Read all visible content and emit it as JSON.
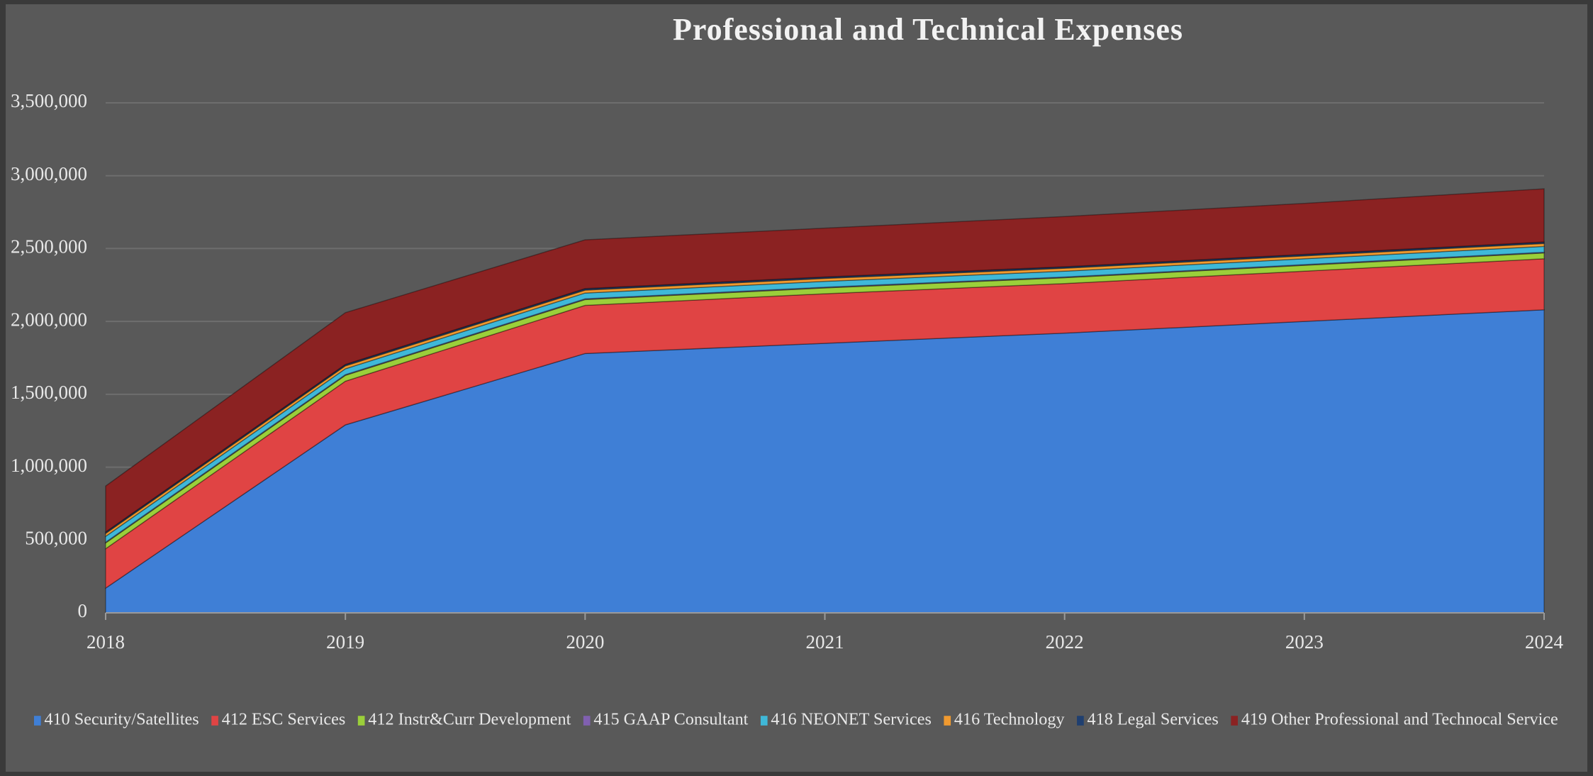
{
  "chart_data": {
    "type": "stacked_area",
    "title": "Professional and Technical Expenses",
    "categories": [
      "2018",
      "2019",
      "2020",
      "2021",
      "2022",
      "2023",
      "2024"
    ],
    "series": [
      {
        "name": "410 Security/Satellites",
        "color": "#3f7fd6",
        "values": [
          170000,
          1290000,
          1780000,
          1850000,
          1920000,
          2000000,
          2080000
        ]
      },
      {
        "name": "412 ESC Services",
        "color": "#e04444",
        "values": [
          270000,
          300000,
          330000,
          340000,
          340000,
          345000,
          350000
        ]
      },
      {
        "name": "412 Instr&Curr Development",
        "color": "#9bcf3a",
        "values": [
          40000,
          40000,
          40000,
          40000,
          40000,
          40000,
          40000
        ]
      },
      {
        "name": "415 GAAP Consultant",
        "color": "#8060b0",
        "values": [
          5000,
          5000,
          5000,
          5000,
          5000,
          5000,
          5000
        ]
      },
      {
        "name": "416 NEONET Services",
        "color": "#3fb8d8",
        "values": [
          40000,
          40000,
          40000,
          40000,
          40000,
          40000,
          40000
        ]
      },
      {
        "name": "416 Technology",
        "color": "#f09a30",
        "values": [
          20000,
          20000,
          20000,
          20000,
          20000,
          20000,
          20000
        ]
      },
      {
        "name": "418 Legal Services",
        "color": "#1f3f70",
        "values": [
          10000,
          10000,
          10000,
          10000,
          10000,
          10000,
          10000
        ]
      },
      {
        "name": "419 Other Professional and Technocal Service",
        "color": "#8b2222",
        "values": [
          315000,
          355000,
          335000,
          335000,
          345000,
          350000,
          365000
        ]
      }
    ],
    "ylim": [
      0,
      3500000
    ],
    "yticks": [
      0,
      {
        "value": 500000,
        "label": "500,000"
      },
      {
        "value": 1000000,
        "label": "1,000,000"
      },
      {
        "value": 1500000,
        "label": "1,500,000"
      },
      {
        "value": 2000000,
        "label": "2,000,000"
      },
      {
        "value": 2500000,
        "label": "2,500,000"
      },
      {
        "value": 3000000,
        "label": "3,000,000"
      },
      {
        "value": 3500000,
        "label": "3,500,000"
      }
    ],
    "grid": true
  }
}
